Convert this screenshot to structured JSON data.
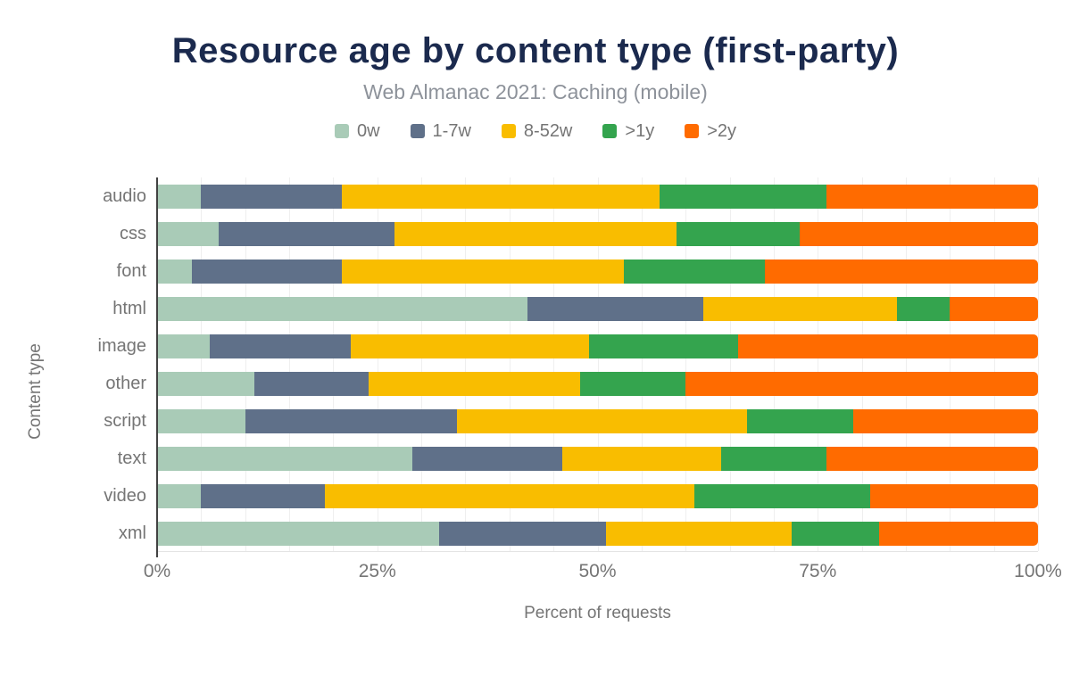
{
  "header": {
    "title": "Resource age by content type (first-party)",
    "subtitle": "Web Almanac 2021: Caching (mobile)"
  },
  "colors": {
    "title_navy": "#1b2a4e",
    "subtitle_gray": "#8d929a",
    "axis_text_gray": "#757575",
    "axis_line": "#424242",
    "gridline": "#efefef"
  },
  "chart_data": {
    "type": "bar",
    "orientation": "horizontal-stacked",
    "title": "Resource age by content type (first-party)",
    "subtitle": "Web Almanac 2021: Caching (mobile)",
    "xlabel": "Percent of requests",
    "ylabel": "Content type",
    "xlim": [
      0,
      100
    ],
    "grid": true,
    "grid_step": 5,
    "legend_position": "top",
    "x_ticks": [
      {
        "label": "0%",
        "value": 0
      },
      {
        "label": "25%",
        "value": 25
      },
      {
        "label": "50%",
        "value": 50
      },
      {
        "label": "75%",
        "value": 75
      },
      {
        "label": "100%",
        "value": 100
      }
    ],
    "categories": [
      "audio",
      "css",
      "font",
      "html",
      "image",
      "other",
      "script",
      "text",
      "video",
      "xml"
    ],
    "series": [
      {
        "name": "0w",
        "color": "#a9cbb7",
        "values": [
          5,
          7,
          4,
          42,
          6,
          11,
          10,
          29,
          5,
          32
        ]
      },
      {
        "name": "1-7w",
        "color": "#5f7089",
        "values": [
          16,
          20,
          17,
          20,
          16,
          13,
          24,
          17,
          14,
          19
        ]
      },
      {
        "name": "8-52w",
        "color": "#f9bd00",
        "values": [
          36,
          32,
          32,
          22,
          27,
          24,
          33,
          18,
          42,
          21
        ]
      },
      {
        "name": ">1y",
        "color": "#34a44e",
        "values": [
          19,
          14,
          16,
          6,
          17,
          12,
          12,
          12,
          20,
          10
        ]
      },
      {
        "name": ">2y",
        "color": "#ff6b00",
        "values": [
          24,
          27,
          31,
          10,
          34,
          40,
          21,
          24,
          19,
          18
        ]
      }
    ]
  }
}
